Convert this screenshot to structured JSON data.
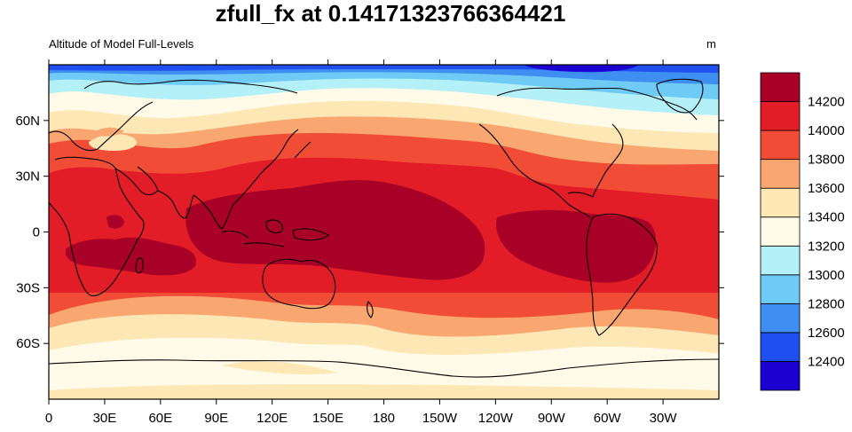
{
  "figure": {
    "title": "zfull_fx at 0.14171323766364421",
    "left_string": "Altitude of Model Full-Levels",
    "right_string": "m"
  },
  "axes": {
    "x_ticks": [
      "0",
      "30E",
      "60E",
      "90E",
      "120E",
      "150E",
      "180",
      "150W",
      "120W",
      "90W",
      "60W",
      "30W"
    ],
    "y_ticks": [
      "60N",
      "30N",
      "0",
      "30S",
      "60S"
    ]
  },
  "colorbar": {
    "levels": [
      "12400",
      "12600",
      "12800",
      "13000",
      "13200",
      "13400",
      "13600",
      "13800",
      "14000",
      "14200"
    ],
    "colors": [
      "#1c00d2",
      "#1f4ff0",
      "#3f8ef2",
      "#6fcaf5",
      "#b3f0f8",
      "#fffbe8",
      "#fde7b5",
      "#f9a671",
      "#f14d36",
      "#e21d28",
      "#a80026"
    ]
  },
  "fill_colors": {
    "c0": "#1c00d2",
    "c1": "#1f4ff0",
    "c2": "#3f8ef2",
    "c3": "#6fcaf5",
    "c4": "#b3f0f8",
    "c5": "#fffbe8",
    "c6": "#fde7b5",
    "c7": "#f9a671",
    "c8": "#f14d36",
    "c9": "#e21d28",
    "c10": "#a80026"
  }
}
